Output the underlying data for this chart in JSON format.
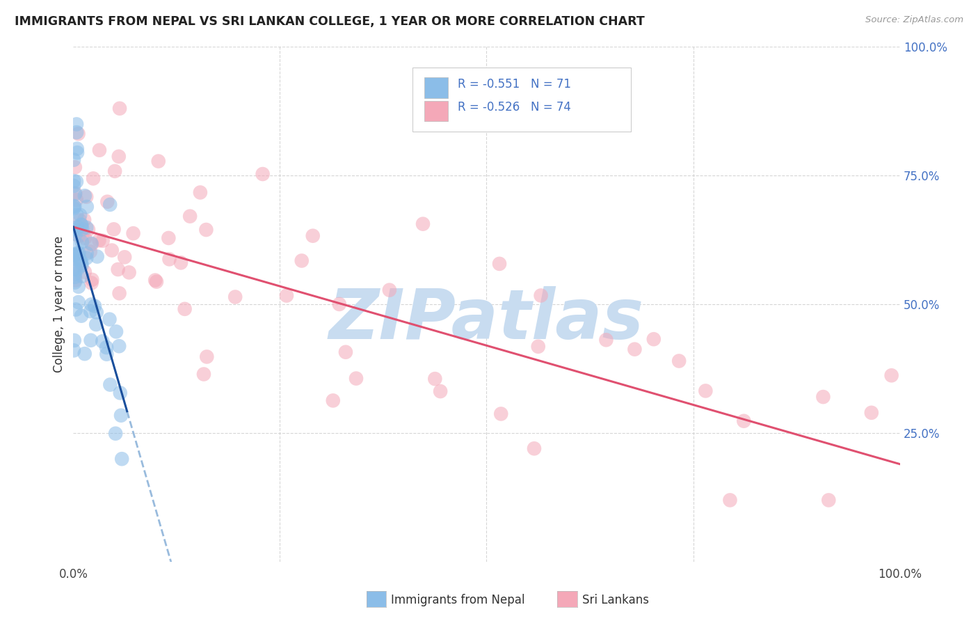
{
  "title": "IMMIGRANTS FROM NEPAL VS SRI LANKAN COLLEGE, 1 YEAR OR MORE CORRELATION CHART",
  "source_text": "Source: ZipAtlas.com",
  "ylabel": "College, 1 year or more",
  "legend_label1": "Immigrants from Nepal",
  "legend_label2": "Sri Lankans",
  "R1": -0.551,
  "N1": 71,
  "R2": -0.526,
  "N2": 74,
  "color1": "#8BBDE8",
  "color2": "#F4A8B8",
  "line1_color": "#1A4F9C",
  "line2_color": "#E05070",
  "line1_dash_color": "#99BBDD",
  "background_color": "#FFFFFF",
  "grid_color": "#CCCCCC",
  "watermark": "ZIPatlas",
  "watermark_color": "#C8DCF0",
  "title_color": "#222222",
  "source_color": "#999999",
  "right_tick_color": "#4472C4",
  "legend_border_color": "#CCCCCC"
}
